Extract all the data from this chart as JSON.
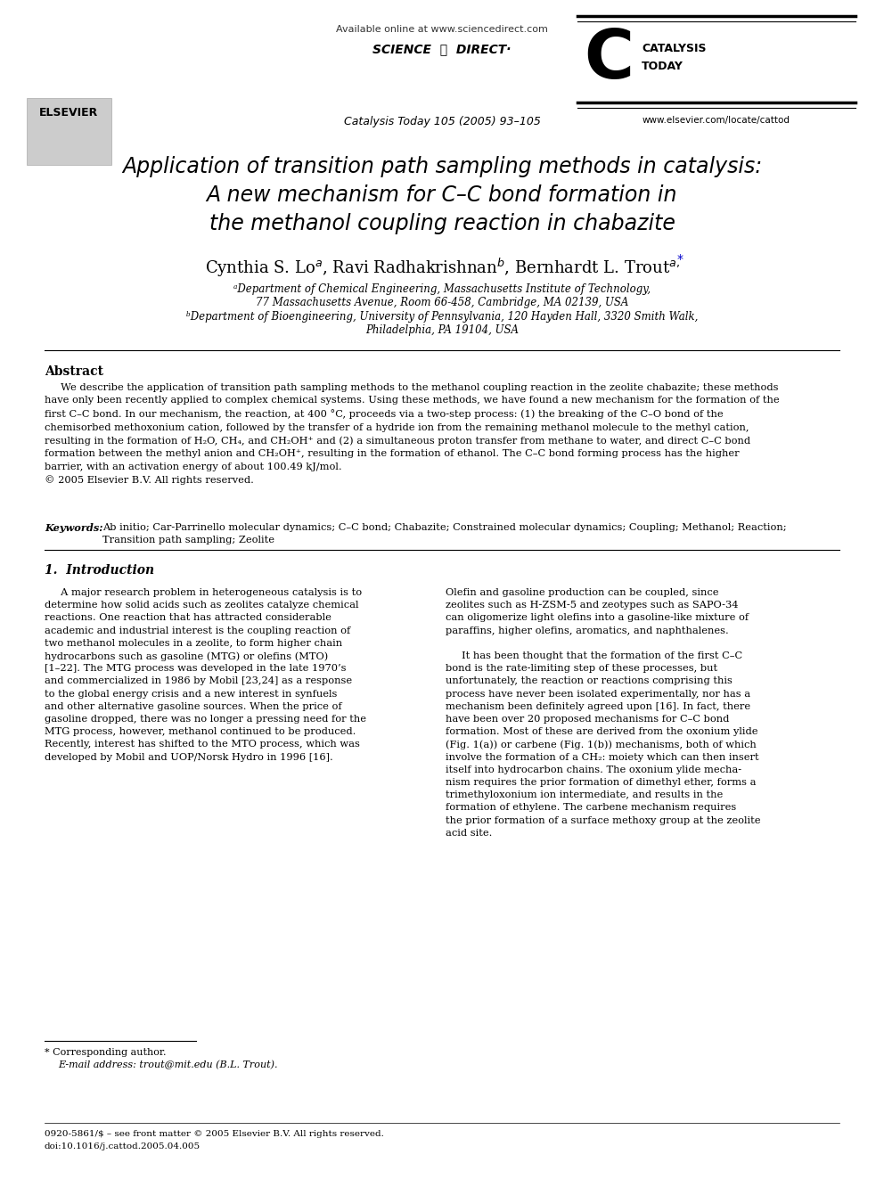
{
  "background_color": "#ffffff",
  "page_width": 9.92,
  "page_height": 13.23,
  "header_available": "Available online at www.sciencedirect.com",
  "header_sd": "SCIENCE  ⓓ  DIRECT·",
  "header_journal": "Catalysis Today 105 (2005) 93–105",
  "catalysis_today_line1": "CATALYSIS",
  "catalysis_today_line2": "TODAY",
  "elsevier_url": "www.elsevier.com/locate/cattod",
  "title_line1": "Application of transition path sampling methods in catalysis:",
  "title_line2": "A new mechanism for C–C bond formation in",
  "title_line3": "the methanol coupling reaction in chabazite",
  "author_main": "Cynthia S. Lo",
  "author_sup1": "a",
  "author_mid1": ", Ravi Radhakrishnan",
  "author_sup2": "b",
  "author_mid2": ", Bernhardt L. Trout",
  "author_sup3": "a,*",
  "affil_a1": "ᵃDepartment of Chemical Engineering, Massachusetts Institute of Technology,",
  "affil_a2": "77 Massachusetts Avenue, Room 66-458, Cambridge, MA 02139, USA",
  "affil_b1": "ᵇDepartment of Bioengineering, University of Pennsylvania, 120 Hayden Hall, 3320 Smith Walk,",
  "affil_b2": "Philadelphia, PA 19104, USA",
  "abstract_label": "Abstract",
  "abstract_body": "We describe the application of transition path sampling methods to the methanol coupling reaction in the zeolite chabazite; these methods\nhave only been recently applied to complex chemical systems. Using these methods, we have found a new mechanism for the formation of the\nfirst C–C bond. In our mechanism, the reaction, at 400 °C, proceeds via a two-step process: (1) the breaking of the C–O bond of the\nchemisorbed methoxonium cation, followed by the transfer of a hydride ion from the remaining methanol molecule to the methyl cation,\nresulting in the formation of H₂O, CH₄, and CH₂OH⁺ and (2) a simultaneous proton transfer from methane to water, and direct C–C bond\nformation between the methyl anion and CH₂OH⁺, resulting in the formation of ethanol. The C–C bond forming process has the higher\nbarrier, with an activation energy of about 100.49 kJ/mol.\n© 2005 Elsevier B.V. All rights reserved.",
  "kw_label": "Keywords:",
  "kw_body": "Ab initio; Car-Parrinello molecular dynamics; C–C bond; Chabazite; Constrained molecular dynamics; Coupling; Methanol; Reaction;\nTransition path sampling; Zeolite",
  "s1_title": "1.  Introduction",
  "col1_line1": "     A major research problem in heterogeneous catalysis is to",
  "col1_line2": "determine how solid acids such as zeolites catalyze chemical",
  "col1_line3": "reactions. One reaction that has attracted considerable",
  "col1_line4": "academic and industrial interest is the coupling reaction of",
  "col1_line5": "two methanol molecules in a zeolite, to form higher chain",
  "col1_line6": "hydrocarbons such as gasoline (MTG) or olefins (MTO)",
  "col1_line7": "[1–22]. The MTG process was developed in the late 1970’s",
  "col1_line8": "and commercialized in 1986 by Mobil [23,24] as a response",
  "col1_line9": "to the global energy crisis and a new interest in synfuels",
  "col1_line10": "and other alternative gasoline sources. When the price of",
  "col1_line11": "gasoline dropped, there was no longer a pressing need for the",
  "col1_line12": "MTG process, however, methanol continued to be produced.",
  "col1_line13": "Recently, interest has shifted to the MTO process, which was",
  "col1_line14": "developed by Mobil and UOP/Norsk Hydro in 1996 [16].",
  "col2_line1": "Olefin and gasoline production can be coupled, since",
  "col2_line2": "zeolites such as H-ZSM-5 and zeotypes such as SAPO-34",
  "col2_line3": "can oligomerize light olefins into a gasoline-like mixture of",
  "col2_line4": "paraffins, higher olefins, aromatics, and naphthalenes.",
  "col2_line5": "",
  "col2_line6": "     It has been thought that the formation of the first C–C",
  "col2_line7": "bond is the rate-limiting step of these processes, but",
  "col2_line8": "unfortunately, the reaction or reactions comprising this",
  "col2_line9": "process have never been isolated experimentally, nor has a",
  "col2_line10": "mechanism been definitely agreed upon [16]. In fact, there",
  "col2_line11": "have been over 20 proposed mechanisms for C–C bond",
  "col2_line12": "formation. Most of these are derived from the oxonium ylide",
  "col2_line13": "(Fig. 1(a)) or carbene (Fig. 1(b)) mechanisms, both of which",
  "col2_line14": "involve the formation of a CH₂: moiety which can then insert",
  "col2_line15": "itself into hydrocarbon chains. The oxonium ylide mecha-",
  "col2_line16": "nism requires the prior formation of dimethyl ether, forms a",
  "col2_line17": "trimethyloxonium ion intermediate, and results in the",
  "col2_line18": "formation of ethylene. The carbene mechanism requires",
  "col2_line19": "the prior formation of a surface methoxy group at the zeolite",
  "col2_line20": "acid site.",
  "footnote1": "* Corresponding author.",
  "footnote2": "E-mail address: trout@mit.edu (B.L. Trout).",
  "footer1": "0920-5861/$ – see front matter © 2005 Elsevier B.V. All rights reserved.",
  "footer2": "doi:10.1016/j.cattod.2005.04.005"
}
